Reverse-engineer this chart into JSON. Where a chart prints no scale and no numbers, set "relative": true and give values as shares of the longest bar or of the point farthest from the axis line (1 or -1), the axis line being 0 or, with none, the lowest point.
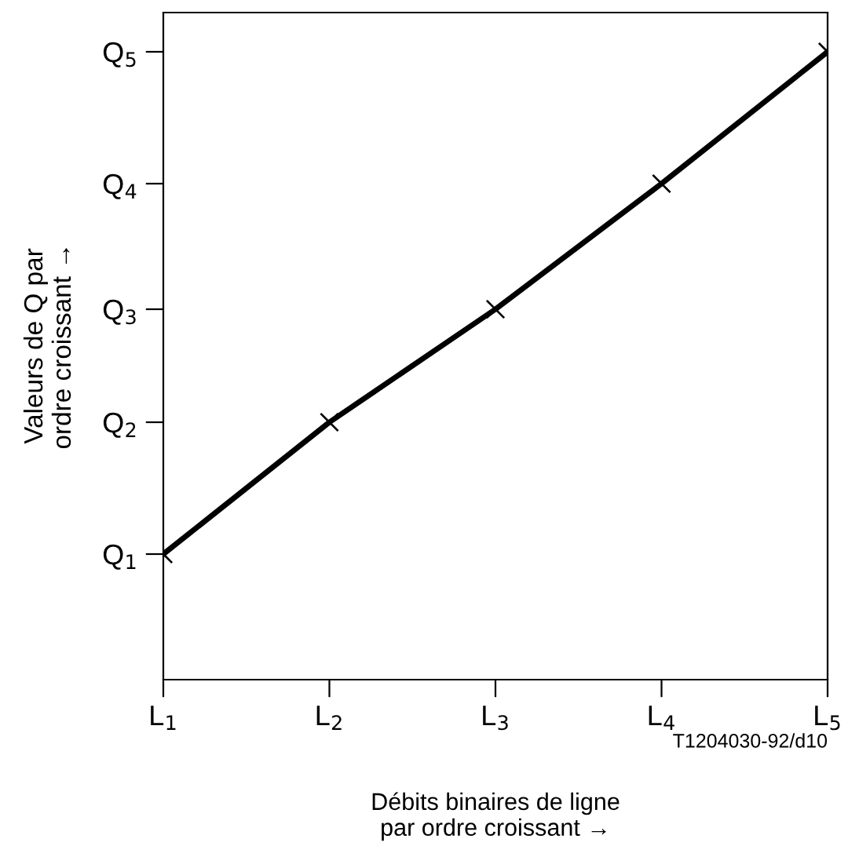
{
  "chart_data": {
    "type": "line",
    "xlabel": "Débits binaires de ligne\npar ordre croissant →",
    "ylabel": "Valeurs de Q par\nordre croissant →",
    "categories": [
      "L$_{1}$",
      "L$_{2}$",
      "L$_{3}$",
      "L$_{4}$",
      "L$_{5}$"
    ],
    "relative": true,
    "series": [
      {
        "color": "#000000",
        "values": [
          0.2,
          0.41,
          0.59,
          0.79,
          1
        ]
      }
    ],
    "marker": "cross",
    "line_style": "solid",
    "annotations": [
      "Q$_{1}$",
      "Q$_{2}$",
      "Q$_{3}$",
      "Q$_{4}$",
      "Q$_{5}$",
      "T1204030-92/d10"
    ]
  }
}
